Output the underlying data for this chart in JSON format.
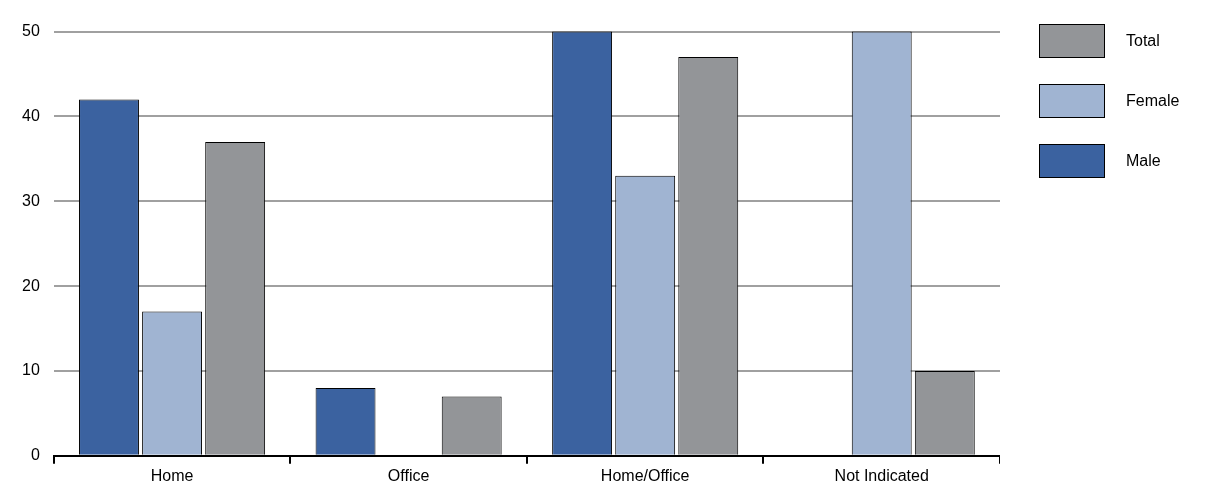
{
  "chart_data": {
    "type": "bar",
    "categories": [
      "Home",
      "Office",
      "Home/Office",
      "Not Indicated"
    ],
    "series": [
      {
        "name": "Male",
        "color": "#3b62a0",
        "values": [
          42,
          8,
          50,
          0
        ]
      },
      {
        "name": "Female",
        "color": "#a0b4d2",
        "values": [
          17,
          0,
          33,
          50
        ]
      },
      {
        "name": "Total",
        "color": "#939598",
        "values": [
          37,
          7,
          47,
          10
        ]
      }
    ],
    "ylim": [
      0,
      50
    ],
    "yticks": [
      0,
      10,
      20,
      30,
      40,
      50
    ],
    "grid": "y",
    "legend": "right"
  }
}
